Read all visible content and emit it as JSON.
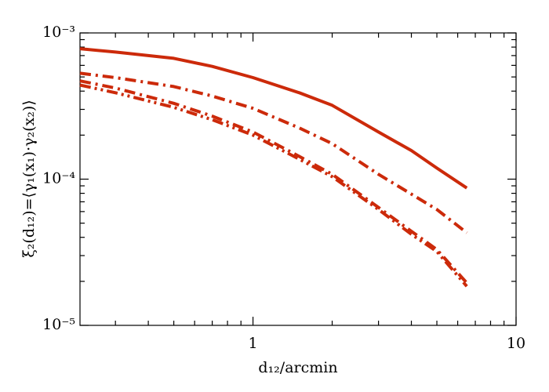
{
  "chart_data": {
    "type": "line",
    "log_x": true,
    "log_y": true,
    "xlabel": "d₁₂/arcmin",
    "ylabel": "ξ₂(d₁₂)=⟨γ₁(x₁)·γ₂(x₂)⟩",
    "xlim": [
      0.22,
      10
    ],
    "ylim": [
      1e-05,
      0.001
    ],
    "xticks": [
      1,
      10
    ],
    "xminorticks": [
      0.3,
      0.4,
      0.5,
      0.6,
      0.7,
      0.8,
      0.9,
      2,
      3,
      4,
      5,
      6,
      7,
      8,
      9
    ],
    "yticks": [
      {
        "value": 0.001,
        "label": "10⁻³"
      },
      {
        "value": 0.0001,
        "label": "10⁻⁴"
      },
      {
        "value": 1e-05,
        "label": "10⁻⁵"
      }
    ],
    "yminorticks": [
      2e-05,
      3e-05,
      4e-05,
      5e-05,
      6e-05,
      7e-05,
      8e-05,
      9e-05,
      0.0002,
      0.0003,
      0.0004,
      0.0005,
      0.0006,
      0.0007,
      0.0008,
      0.0009
    ],
    "x": [
      0.22,
      0.3,
      0.5,
      0.7,
      1,
      1.5,
      2,
      3,
      4,
      5,
      6.5
    ],
    "series": [
      {
        "color": "#cc2a0a",
        "linestyle": "solid",
        "values": [
          0.00078,
          0.00074,
          0.00067,
          0.00059,
          0.000495,
          0.00039,
          0.00032,
          0.00021,
          0.000157,
          0.000119,
          8.7e-05
        ]
      },
      {
        "color": "#cc2a0a",
        "linestyle": "dash-dot",
        "values": [
          0.00053,
          0.000495,
          0.00043,
          0.00037,
          0.000305,
          0.000224,
          0.000175,
          0.000108,
          7.9e-05,
          6.2e-05,
          4.3e-05
        ]
      },
      {
        "color": "#cc2a0a",
        "linestyle": "dash-dot-dot",
        "values": [
          0.00044,
          0.00039,
          0.00031,
          0.000255,
          0.0002,
          0.000137,
          0.000104,
          6.2e-05,
          4.2e-05,
          3.2e-05,
          1.85e-05
        ]
      },
      {
        "color": "#cc2a0a",
        "linestyle": "dash-dot",
        "values": [
          0.00047,
          0.00042,
          0.00033,
          0.00027,
          0.00021,
          0.000143,
          0.000108,
          6.4e-05,
          4.4e-05,
          3.3e-05,
          1.95e-05
        ]
      }
    ]
  }
}
